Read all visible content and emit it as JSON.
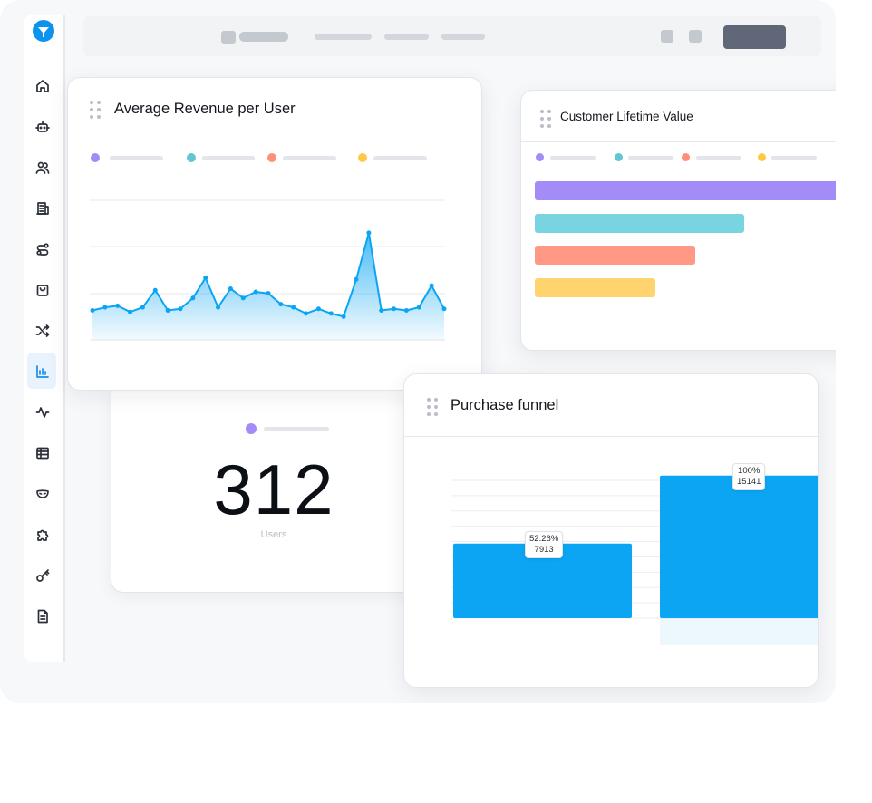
{
  "colors": {
    "accent": "#0ba5f3",
    "purple": "#a38cf8",
    "teal": "#79d4e1",
    "salmon": "#ff9985",
    "yellow": "#ffd36d"
  },
  "sidebar": {
    "items": [
      {
        "icon": "home-icon"
      },
      {
        "icon": "robot-icon"
      },
      {
        "icon": "users-icon"
      },
      {
        "icon": "building-icon"
      },
      {
        "icon": "route-icon"
      },
      {
        "icon": "shopping-bag-icon"
      },
      {
        "icon": "shuffle-icon"
      },
      {
        "icon": "bar-chart-icon",
        "active": true
      },
      {
        "icon": "activity-icon"
      },
      {
        "icon": "table-icon"
      },
      {
        "icon": "mask-icon"
      },
      {
        "icon": "puzzle-icon"
      },
      {
        "icon": "key-icon"
      },
      {
        "icon": "document-icon"
      }
    ]
  },
  "arpu_card": {
    "title": "Average Revenue per User",
    "chart_data": {
      "type": "area",
      "title": "Average Revenue per User",
      "values": [
        49,
        51,
        52,
        48,
        51,
        62,
        49,
        50,
        57,
        70,
        51,
        63,
        57,
        61,
        60,
        53,
        51,
        47,
        50,
        47,
        45,
        69,
        99,
        49,
        50,
        49,
        51,
        65,
        50
      ],
      "ylim": [
        30,
        120
      ],
      "grid": true
    }
  },
  "users_card": {
    "value": "312",
    "label": "Users"
  },
  "clv_card": {
    "title": "Customer Lifetime Value",
    "chart_data": {
      "type": "bar",
      "title": "Customer Lifetime Value",
      "orientation": "horizontal",
      "values": [
        100,
        68,
        52,
        39
      ],
      "colors": [
        "#a38cf8",
        "#79d4e1",
        "#ff9985",
        "#ffd36d"
      ]
    }
  },
  "funnel_card": {
    "title": "Purchase funnel",
    "chart_data": {
      "type": "bar",
      "title": "Purchase funnel",
      "values": [
        7913,
        15141
      ],
      "labels": [
        "52.26%",
        "100%"
      ],
      "ylim": [
        0,
        18000
      ]
    }
  }
}
